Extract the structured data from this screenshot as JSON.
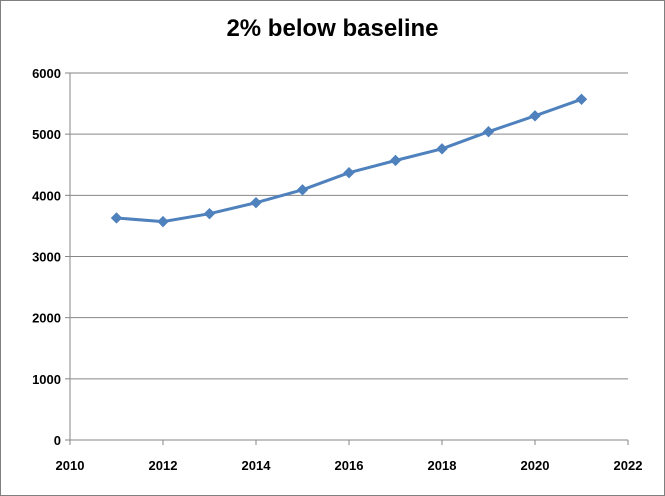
{
  "chart_data": {
    "type": "line",
    "title": "2% below baseline",
    "xlabel": "",
    "ylabel": "",
    "xlim": [
      2010,
      2022
    ],
    "ylim": [
      0,
      6000
    ],
    "xticks": [
      2010,
      2012,
      2014,
      2016,
      2018,
      2020,
      2022
    ],
    "yticks": [
      0,
      1000,
      2000,
      3000,
      4000,
      5000,
      6000
    ],
    "grid": "horizontal",
    "legend": "none",
    "series": [
      {
        "color": "#4f81bd",
        "marker": "diamond",
        "x": [
          2011,
          2012,
          2013,
          2014,
          2015,
          2016,
          2017,
          2018,
          2019,
          2020,
          2021
        ],
        "y": [
          3630,
          3570,
          3700,
          3880,
          4090,
          4370,
          4570,
          4760,
          5040,
          5300,
          5570
        ]
      }
    ]
  }
}
